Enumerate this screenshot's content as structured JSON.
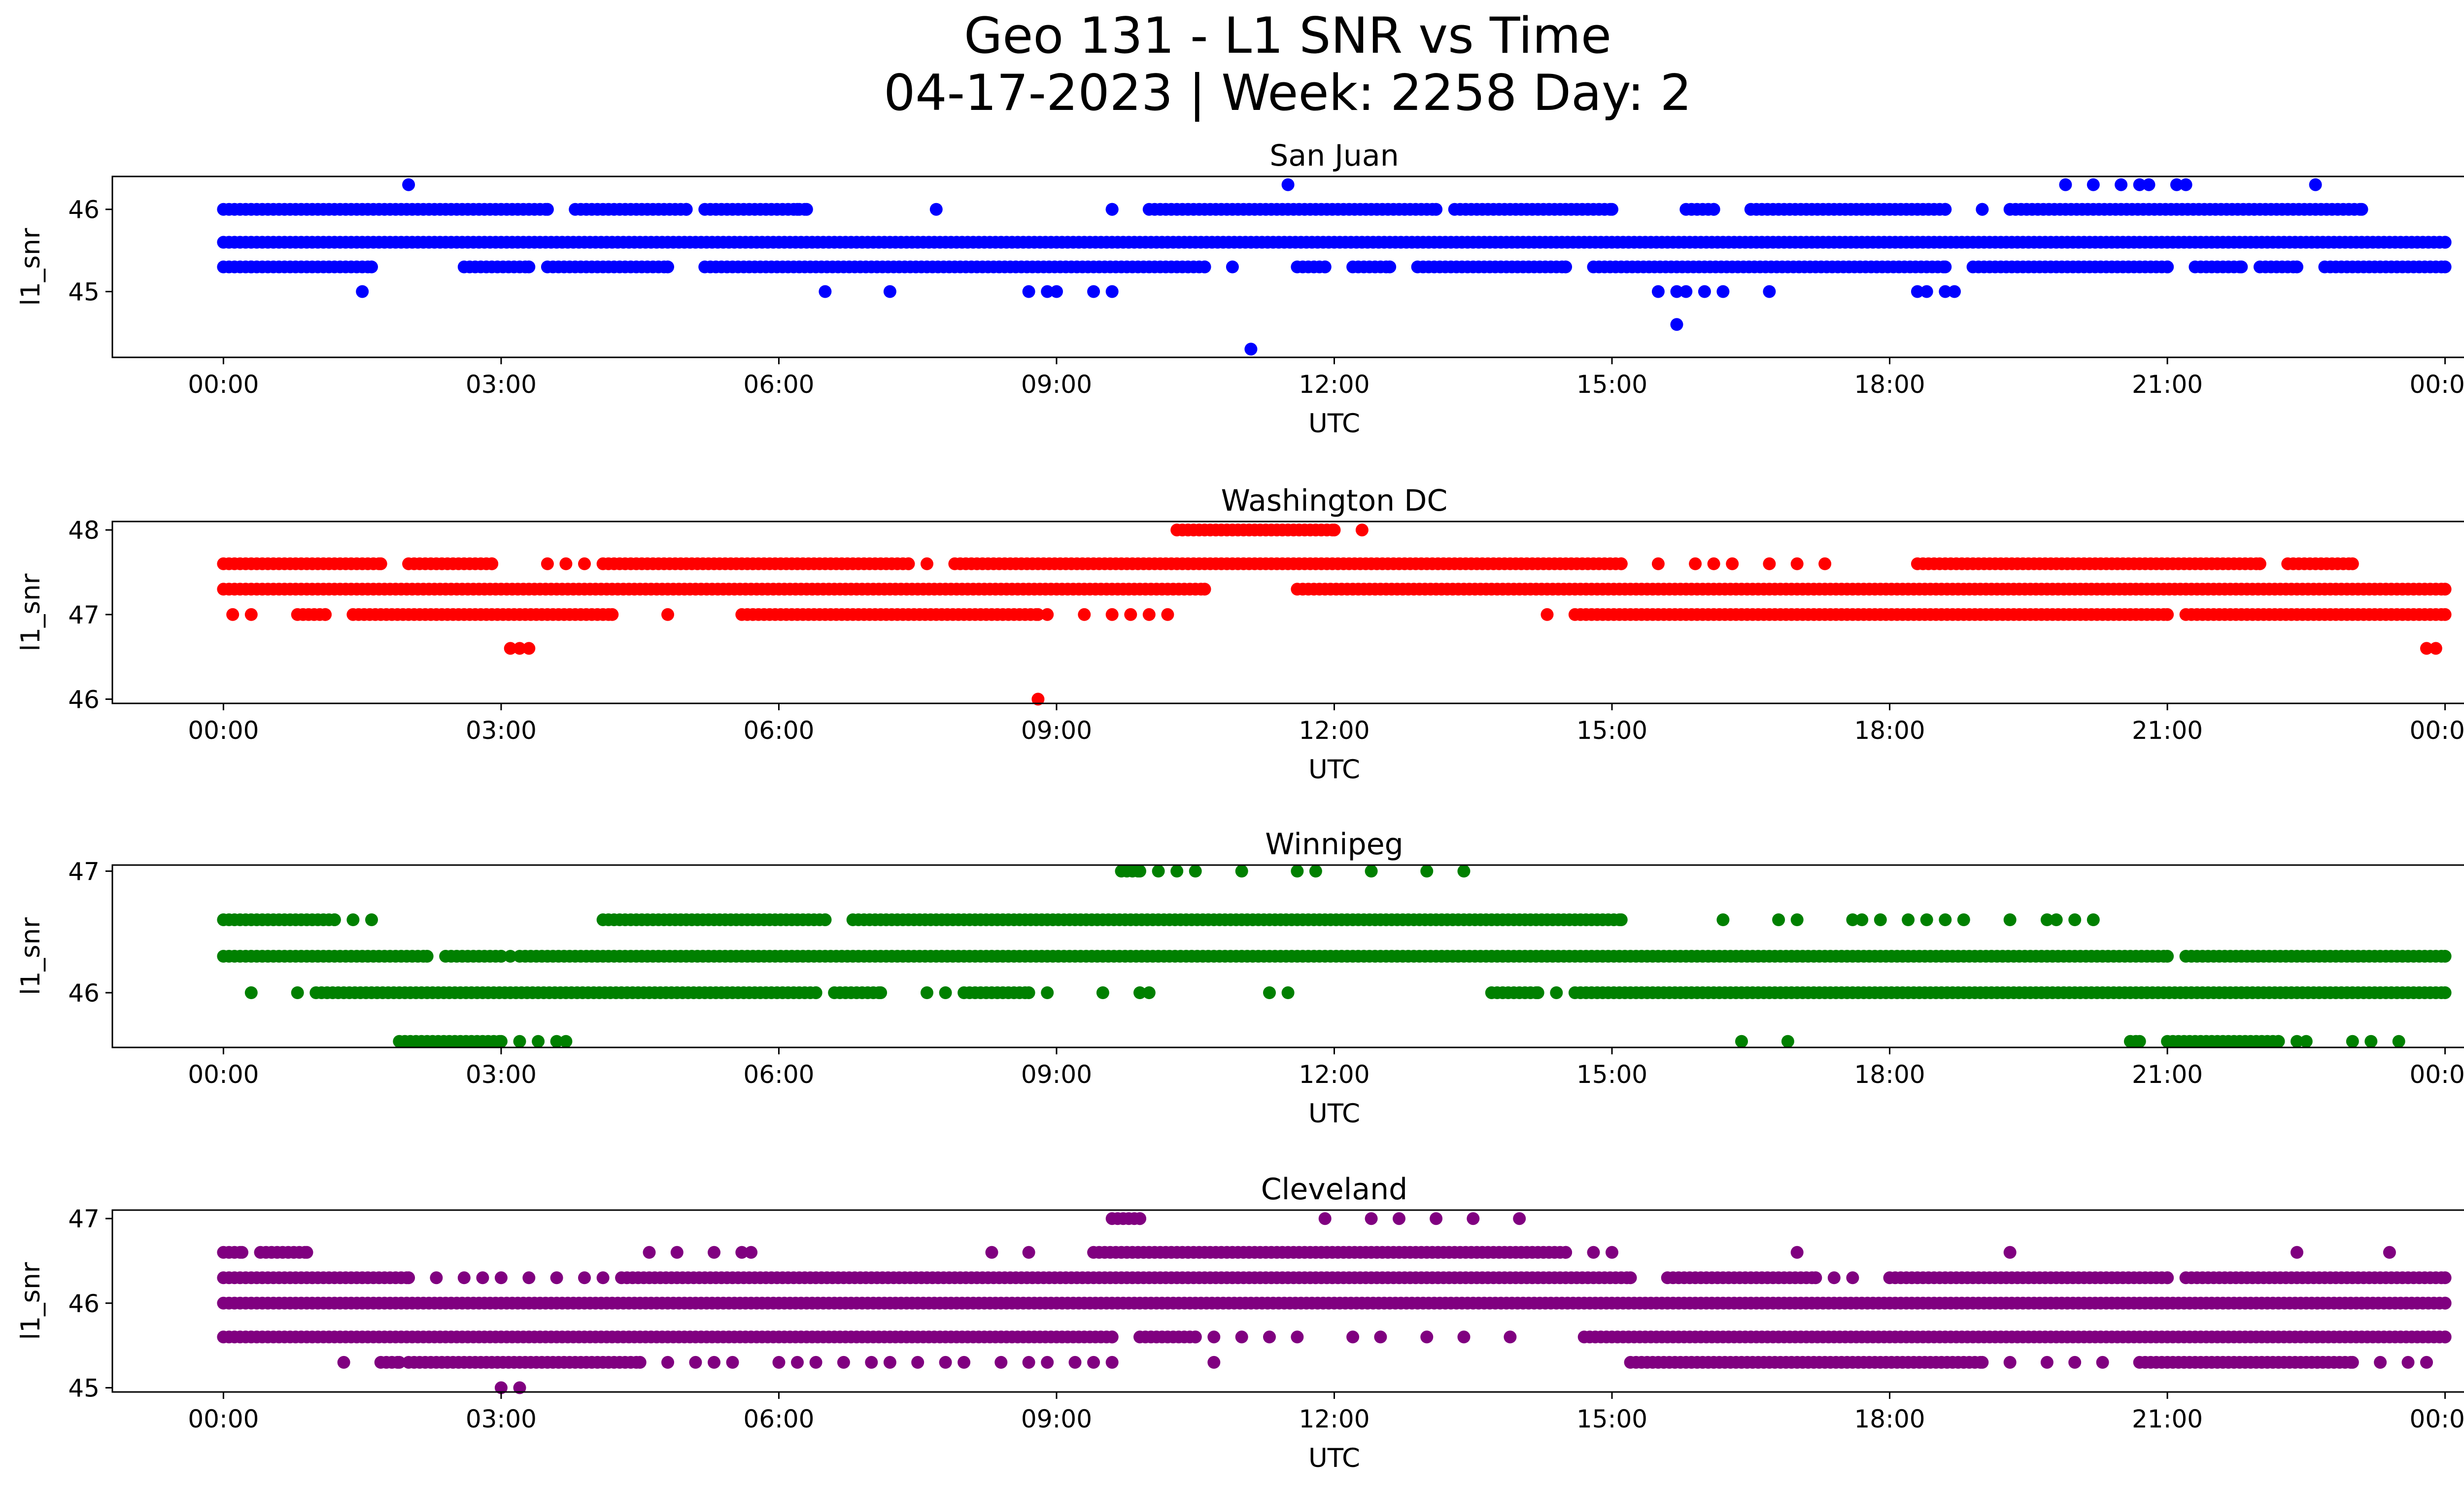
{
  "figure": {
    "title_line1": "Geo 131 - L1 SNR vs Time",
    "title_line2": "04-17-2023 | Week: 2258 Day: 2"
  },
  "chart_data": [
    {
      "type": "scatter",
      "title": "San Juan",
      "xlabel": "UTC",
      "ylabel": "l1_snr",
      "color": "#0000ff",
      "x_ticks": [
        "00:00",
        "03:00",
        "06:00",
        "09:00",
        "12:00",
        "15:00",
        "18:00",
        "21:00",
        "00:00"
      ],
      "x_range_hours": [
        -1.2,
        25.2
      ],
      "y_ticks": [
        45,
        46
      ],
      "ylim": [
        44.2,
        46.4
      ],
      "grid": false,
      "rows": [
        {
          "y": 46.3,
          "x_hours": [
            2.0,
            11.5,
            19.9,
            20.2,
            20.5,
            20.7,
            20.8,
            21.1,
            21.2,
            22.6
          ]
        },
        {
          "y": 46.0,
          "ranges": [
            [
              0.0,
              3.5
            ],
            [
              3.8,
              5.0
            ],
            [
              5.2,
              6.3
            ],
            [
              9.6,
              9.6
            ],
            [
              10.0,
              13.1
            ],
            [
              13.3,
              15.0
            ],
            [
              15.8,
              16.1
            ],
            [
              16.5,
              18.6
            ],
            [
              19.0,
              19.0
            ],
            [
              19.3,
              23.1
            ]
          ],
          "x_hours": [
            6.2,
            7.7
          ]
        },
        {
          "y": 45.6,
          "ranges": [
            [
              0.0,
              24.0
            ]
          ]
        },
        {
          "y": 45.3,
          "ranges": [
            [
              0.0,
              1.6
            ],
            [
              2.6,
              3.3
            ],
            [
              3.5,
              4.8
            ],
            [
              5.2,
              10.6
            ],
            [
              11.6,
              11.9
            ],
            [
              12.2,
              12.6
            ],
            [
              12.9,
              14.5
            ],
            [
              14.8,
              18.6
            ],
            [
              18.9,
              21.0
            ],
            [
              21.3,
              21.8
            ],
            [
              22.0,
              22.4
            ],
            [
              22.7,
              24.0
            ]
          ],
          "x_hours": [
            0.3,
            10.9
          ]
        },
        {
          "y": 45.0,
          "x_hours": [
            1.5,
            6.5,
            7.2,
            8.7,
            8.9,
            9.0,
            9.4,
            9.6,
            15.5,
            15.7,
            15.8,
            16.0,
            16.2,
            16.7,
            18.3,
            18.4,
            18.6,
            18.7
          ]
        },
        {
          "y": 44.6,
          "x_hours": [
            15.7
          ]
        },
        {
          "y": 44.3,
          "x_hours": [
            11.1
          ]
        }
      ]
    },
    {
      "type": "scatter",
      "title": "Washington DC",
      "xlabel": "UTC",
      "ylabel": "l1_snr",
      "color": "#ff0000",
      "x_ticks": [
        "00:00",
        "03:00",
        "06:00",
        "09:00",
        "12:00",
        "15:00",
        "18:00",
        "21:00",
        "00:00"
      ],
      "x_range_hours": [
        -1.2,
        25.2
      ],
      "y_ticks": [
        46,
        47,
        48
      ],
      "ylim": [
        45.95,
        48.1
      ],
      "grid": false,
      "rows": [
        {
          "y": 48.0,
          "ranges": [
            [
              10.3,
              12.0
            ]
          ],
          "x_hours": [
            12.3
          ]
        },
        {
          "y": 47.6,
          "ranges": [
            [
              0.0,
              1.7
            ],
            [
              2.0,
              2.9
            ],
            [
              4.1,
              7.4
            ],
            [
              7.9,
              15.1
            ],
            [
              18.3,
              22.0
            ],
            [
              22.3,
              23.0
            ]
          ],
          "x_hours": [
            3.5,
            3.7,
            3.9,
            7.6,
            15.5,
            15.9,
            16.1,
            16.3,
            16.7,
            17.0,
            17.3
          ]
        },
        {
          "y": 47.3,
          "ranges": [
            [
              0.0,
              10.6
            ],
            [
              11.6,
              24.0
            ]
          ]
        },
        {
          "y": 47.0,
          "ranges": [
            [
              0.8,
              1.1
            ],
            [
              1.4,
              4.2
            ],
            [
              5.6,
              8.8
            ],
            [
              14.6,
              21.0
            ],
            [
              21.2,
              24.0
            ]
          ],
          "x_hours": [
            0.1,
            0.3,
            4.8,
            8.9,
            9.3,
            9.6,
            9.8,
            10.0,
            10.2,
            14.3
          ]
        },
        {
          "y": 46.6,
          "x_hours": [
            3.1,
            3.2,
            3.3,
            23.8,
            23.9
          ]
        },
        {
          "y": 46.0,
          "x_hours": [
            8.8
          ]
        }
      ]
    },
    {
      "type": "scatter",
      "title": "Winnipeg",
      "xlabel": "UTC",
      "ylabel": "l1_snr",
      "color": "#008000",
      "x_ticks": [
        "00:00",
        "03:00",
        "06:00",
        "09:00",
        "12:00",
        "15:00",
        "18:00",
        "21:00",
        "00:00"
      ],
      "x_range_hours": [
        -1.2,
        25.2
      ],
      "y_ticks": [
        46,
        47
      ],
      "ylim": [
        45.55,
        47.05
      ],
      "grid": false,
      "rows": [
        {
          "y": 47.0,
          "ranges": [
            [
              9.7,
              9.9
            ]
          ],
          "x_hours": [
            10.1,
            10.3,
            10.5,
            11.0,
            11.6,
            11.8,
            12.4,
            13.0,
            13.4
          ]
        },
        {
          "y": 46.6,
          "ranges": [
            [
              0.0,
              1.2
            ],
            [
              4.1,
              6.5
            ],
            [
              6.8,
              15.1
            ]
          ],
          "x_hours": [
            1.4,
            1.6,
            16.2,
            16.8,
            17.0,
            17.6,
            17.7,
            17.9,
            18.2,
            18.4,
            18.6,
            18.8,
            19.3,
            19.7,
            19.8,
            20.0,
            20.2
          ]
        },
        {
          "y": 46.3,
          "ranges": [
            [
              0.0,
              2.2
            ],
            [
              2.4,
              3.0
            ],
            [
              3.2,
              21.0
            ],
            [
              21.2,
              24.0
            ]
          ],
          "x_hours": [
            3.1
          ]
        },
        {
          "y": 46.0,
          "ranges": [
            [
              1.0,
              6.4
            ],
            [
              6.6,
              7.1
            ],
            [
              8.0,
              8.7
            ],
            [
              13.7,
              14.2
            ],
            [
              14.6,
              24.0
            ]
          ],
          "x_hours": [
            0.3,
            0.8,
            7.6,
            7.8,
            8.9,
            9.5,
            9.9,
            10.0,
            11.3,
            11.5,
            14.4
          ]
        },
        {
          "y": 45.6,
          "ranges": [
            [
              1.9,
              3.0
            ],
            [
              20.6,
              20.7
            ],
            [
              21.0,
              22.2
            ]
          ],
          "x_hours": [
            3.2,
            3.4,
            3.6,
            3.7,
            16.4,
            16.9,
            22.4,
            22.5,
            23.0,
            23.2,
            23.5
          ]
        }
      ]
    },
    {
      "type": "scatter",
      "title": "Cleveland",
      "xlabel": "UTC",
      "ylabel": "l1_snr",
      "color": "#800080",
      "x_ticks": [
        "00:00",
        "03:00",
        "06:00",
        "09:00",
        "12:00",
        "15:00",
        "18:00",
        "21:00",
        "00:00"
      ],
      "x_range_hours": [
        -1.2,
        25.2
      ],
      "y_ticks": [
        45,
        46,
        47
      ],
      "ylim": [
        44.95,
        47.1
      ],
      "grid": false,
      "rows": [
        {
          "y": 47.0,
          "ranges": [
            [
              9.6,
              9.9
            ]
          ],
          "x_hours": [
            11.9,
            12.4,
            12.7,
            13.1,
            13.5,
            14.0
          ]
        },
        {
          "y": 46.6,
          "ranges": [
            [
              0.0,
              0.2
            ],
            [
              0.4,
              0.9
            ],
            [
              9.4,
              14.5
            ]
          ],
          "x_hours": [
            4.6,
            4.9,
            5.3,
            5.6,
            5.7,
            8.3,
            8.7,
            14.8,
            15.0,
            17.0,
            19.3,
            22.4,
            23.4
          ]
        },
        {
          "y": 46.3,
          "ranges": [
            [
              0.0,
              2.0
            ],
            [
              4.3,
              15.2
            ],
            [
              15.6,
              17.2
            ],
            [
              18.0,
              21.0
            ],
            [
              21.2,
              24.0
            ]
          ],
          "x_hours": [
            2.3,
            2.6,
            2.8,
            3.0,
            3.3,
            3.6,
            3.9,
            4.1,
            17.4,
            17.6
          ]
        },
        {
          "y": 46.0,
          "ranges": [
            [
              0.0,
              24.0
            ]
          ]
        },
        {
          "y": 45.6,
          "ranges": [
            [
              0.0,
              9.6
            ],
            [
              9.9,
              10.5
            ],
            [
              14.7,
              24.0
            ]
          ],
          "x_hours": [
            10.7,
            11.0,
            11.3,
            11.6,
            12.2,
            12.5,
            13.0,
            13.4,
            13.9
          ]
        },
        {
          "y": 45.3,
          "ranges": [
            [
              1.7,
              1.9
            ],
            [
              2.0,
              4.5
            ],
            [
              15.2,
              19.0
            ],
            [
              20.7,
              23.0
            ]
          ],
          "x_hours": [
            1.3,
            4.8,
            5.1,
            5.3,
            5.5,
            6.0,
            6.2,
            6.4,
            6.7,
            7.0,
            7.2,
            7.5,
            7.8,
            8.0,
            8.4,
            8.7,
            8.9,
            9.2,
            9.4,
            9.6,
            10.7,
            19.3,
            19.7,
            20.0,
            20.3,
            23.3,
            23.6,
            23.8
          ]
        },
        {
          "y": 45.0,
          "x_hours": [
            3.0,
            3.2
          ]
        }
      ]
    }
  ]
}
